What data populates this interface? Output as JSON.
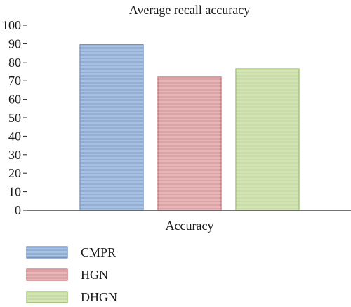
{
  "chart_data": {
    "type": "bar",
    "title": "Average recall accuracy",
    "xlabel": "",
    "ylabel": "",
    "category_label": "Accuracy",
    "categories": [
      "Accuracy"
    ],
    "series": [
      {
        "name": "CMPR",
        "values": [
          89.5
        ],
        "fill": "#8eb0dc",
        "stroke": "#5a84bf"
      },
      {
        "name": "HGN",
        "values": [
          72
        ],
        "fill": "#e3a0a3",
        "stroke": "#c8666b"
      },
      {
        "name": "DHGN",
        "values": [
          76.5
        ],
        "fill": "#c7de9e",
        "stroke": "#8fba55"
      }
    ],
    "ylim": [
      0,
      100
    ],
    "yticks": [
      0,
      10,
      20,
      30,
      40,
      50,
      60,
      70,
      80,
      90,
      100
    ],
    "grid": false,
    "legend_position": "bottom-left"
  }
}
